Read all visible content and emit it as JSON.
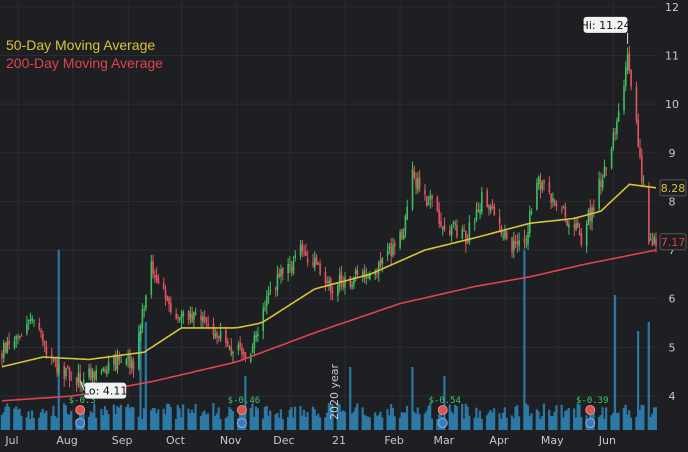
{
  "chart_data": {
    "type": "candlestick",
    "title": "",
    "xlabel": "",
    "ylabel": "",
    "ylim": [
      3.3,
      12.1
    ],
    "grid": true,
    "legend_position": "top-left",
    "colors": {
      "background": "#1e1f22",
      "grid": "#2b2c30",
      "up": "#3fbf5f",
      "down": "#e05561",
      "volume": "#2f86b8",
      "ma50": "#d8c43a",
      "ma200": "#e0434f",
      "price_tag_bg": "#e8e8e8"
    },
    "y_ticks": [
      "4",
      "5",
      "6",
      "7",
      "8",
      "9",
      "10",
      "11",
      "12"
    ],
    "x_ticks": [
      {
        "label": "Jul",
        "date": "2020-07-01"
      },
      {
        "label": "Aug",
        "date": "2020-08-01"
      },
      {
        "label": "Sep",
        "date": "2020-09-01"
      },
      {
        "label": "Oct",
        "date": "2020-10-01"
      },
      {
        "label": "Nov",
        "date": "2020-11-01"
      },
      {
        "label": "Dec",
        "date": "2020-12-01"
      },
      {
        "label": "21",
        "date": "2021-01-01"
      },
      {
        "label": "Feb",
        "date": "2021-02-01"
      },
      {
        "label": "Mar",
        "date": "2021-03-01"
      },
      {
        "label": "Apr",
        "date": "2021-04-01"
      },
      {
        "label": "May",
        "date": "2021-05-01"
      },
      {
        "label": "Jun",
        "date": "2021-06-01"
      }
    ],
    "year_watermark": "2020 year",
    "legend": [
      {
        "name": "50-Day Moving Average",
        "color": "#d8c43a"
      },
      {
        "name": "200-Day Moving Average",
        "color": "#e0434f"
      }
    ],
    "annotations": {
      "high": {
        "label": "Hi: 11.24",
        "date": "2021-06-09",
        "value": 11.24
      },
      "low": {
        "label": "Lo: 4.11",
        "date": "2020-08-05",
        "value": 4.11
      }
    },
    "price_tags": [
      {
        "label": "8.28",
        "value": 8.28,
        "series": "50-Day Moving Average"
      },
      {
        "label": "7.17",
        "value": 7.17,
        "series": "Price"
      }
    ],
    "dividends": [
      {
        "label": "$-0.3",
        "date": "2020-08-05"
      },
      {
        "label": "$-0.46",
        "date": "2020-11-04"
      },
      {
        "label": "$-0.54",
        "date": "2021-02-25"
      },
      {
        "label": "$-0.39",
        "date": "2021-05-19"
      }
    ],
    "price_keypoints": [
      {
        "date": "2020-06-22",
        "value": 4.9
      },
      {
        "date": "2020-07-08",
        "value": 5.55
      },
      {
        "date": "2020-07-22",
        "value": 4.6
      },
      {
        "date": "2020-08-05",
        "value": 4.3
      },
      {
        "date": "2020-08-20",
        "value": 4.65
      },
      {
        "date": "2020-09-04",
        "value": 4.7
      },
      {
        "date": "2020-09-14",
        "value": 6.6
      },
      {
        "date": "2020-09-28",
        "value": 5.6
      },
      {
        "date": "2020-10-14",
        "value": 5.55
      },
      {
        "date": "2020-10-28",
        "value": 5.0
      },
      {
        "date": "2020-11-08",
        "value": 4.75
      },
      {
        "date": "2020-11-20",
        "value": 6.2
      },
      {
        "date": "2020-12-08",
        "value": 7.0
      },
      {
        "date": "2020-12-24",
        "value": 6.25
      },
      {
        "date": "2021-01-18",
        "value": 6.6
      },
      {
        "date": "2021-02-02",
        "value": 7.3
      },
      {
        "date": "2021-02-08",
        "value": 8.5
      },
      {
        "date": "2021-02-25",
        "value": 7.6
      },
      {
        "date": "2021-03-10",
        "value": 7.2
      },
      {
        "date": "2021-03-20",
        "value": 8.2
      },
      {
        "date": "2021-04-04",
        "value": 7.0
      },
      {
        "date": "2021-04-13",
        "value": 7.3
      },
      {
        "date": "2021-04-19",
        "value": 8.4
      },
      {
        "date": "2021-05-01",
        "value": 7.9
      },
      {
        "date": "2021-05-14",
        "value": 7.25
      },
      {
        "date": "2021-05-26",
        "value": 8.5
      },
      {
        "date": "2021-06-03",
        "value": 9.7
      },
      {
        "date": "2021-06-09",
        "value": 10.9
      },
      {
        "date": "2021-06-14",
        "value": 9.5
      },
      {
        "date": "2021-06-21",
        "value": 7.2
      },
      {
        "date": "2021-06-25",
        "value": 7.17
      }
    ],
    "ma50_keypoints": [
      {
        "date": "2020-06-22",
        "value": 4.6
      },
      {
        "date": "2020-07-15",
        "value": 4.8
      },
      {
        "date": "2020-08-10",
        "value": 4.75
      },
      {
        "date": "2020-09-10",
        "value": 4.9
      },
      {
        "date": "2020-10-01",
        "value": 5.4
      },
      {
        "date": "2020-11-01",
        "value": 5.4
      },
      {
        "date": "2020-11-15",
        "value": 5.5
      },
      {
        "date": "2020-12-15",
        "value": 6.2
      },
      {
        "date": "2021-01-15",
        "value": 6.5
      },
      {
        "date": "2021-02-15",
        "value": 7.0
      },
      {
        "date": "2021-03-15",
        "value": 7.25
      },
      {
        "date": "2021-04-15",
        "value": 7.55
      },
      {
        "date": "2021-05-10",
        "value": 7.65
      },
      {
        "date": "2021-05-25",
        "value": 7.8
      },
      {
        "date": "2021-06-10",
        "value": 8.35
      },
      {
        "date": "2021-06-25",
        "value": 8.28
      }
    ],
    "ma200_keypoints": [
      {
        "date": "2020-06-22",
        "value": 3.9
      },
      {
        "date": "2020-08-01",
        "value": 4.0
      },
      {
        "date": "2020-09-15",
        "value": 4.3
      },
      {
        "date": "2020-11-01",
        "value": 4.7
      },
      {
        "date": "2020-12-15",
        "value": 5.3
      },
      {
        "date": "2021-02-01",
        "value": 5.9
      },
      {
        "date": "2021-03-15",
        "value": 6.25
      },
      {
        "date": "2021-04-15",
        "value": 6.45
      },
      {
        "date": "2021-05-15",
        "value": 6.7
      },
      {
        "date": "2021-06-25",
        "value": 7.0
      }
    ],
    "volume_spikes": [
      {
        "date": "2020-07-24",
        "value": 1.0
      },
      {
        "date": "2020-09-08",
        "value": 0.55
      },
      {
        "date": "2020-09-11",
        "value": 0.6
      },
      {
        "date": "2020-11-06",
        "value": 0.3
      },
      {
        "date": "2021-01-04",
        "value": 0.35
      },
      {
        "date": "2021-02-08",
        "value": 0.35
      },
      {
        "date": "2021-02-26",
        "value": 0.3
      },
      {
        "date": "2021-04-12",
        "value": 1.0
      },
      {
        "date": "2021-06-02",
        "value": 0.75
      },
      {
        "date": "2021-06-15",
        "value": 0.55
      },
      {
        "date": "2021-06-21",
        "value": 0.6
      }
    ]
  }
}
